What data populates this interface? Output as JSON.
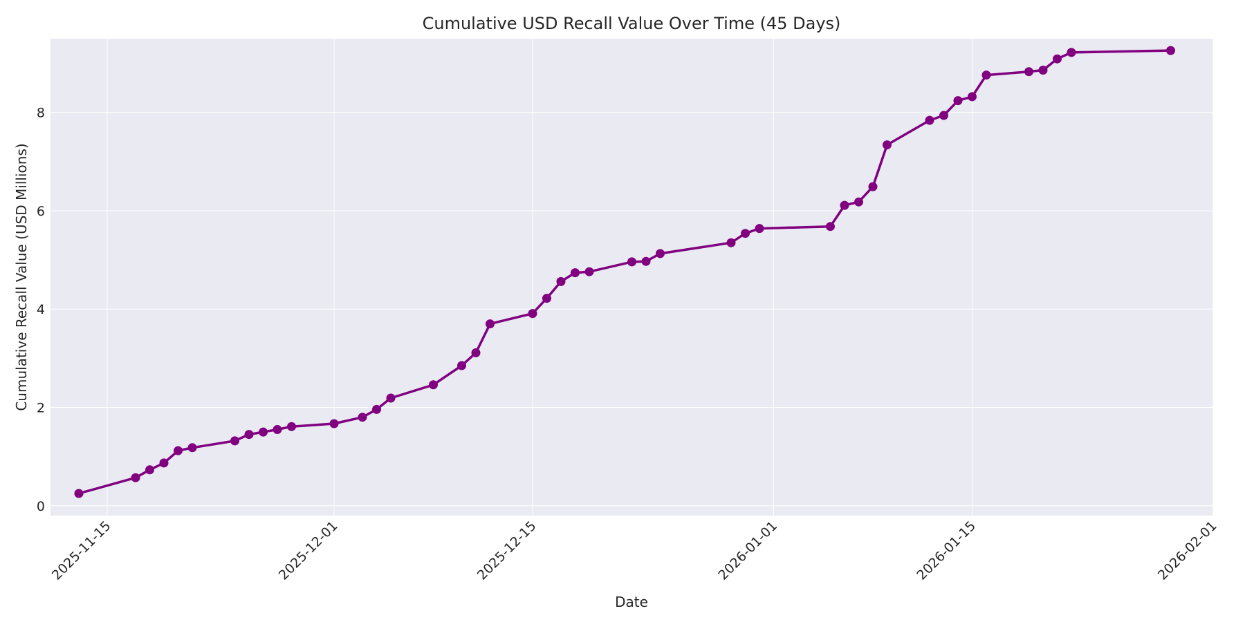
{
  "chart_data": {
    "type": "line",
    "title": "Cumulative USD Recall Value Over Time (45 Days)",
    "xlabel": "Date",
    "ylabel": "Cumulative Recall Value (USD Millions)",
    "xlim": [
      "2025-11-11",
      "2026-02-01"
    ],
    "ylim": [
      -0.2,
      9.5
    ],
    "x_ticks": [
      "2025-11-15",
      "2025-12-01",
      "2025-12-15",
      "2026-01-01",
      "2026-01-15",
      "2026-02-01"
    ],
    "y_ticks": [
      0,
      2,
      4,
      6,
      8
    ],
    "grid": true,
    "colors": {
      "line": "#800080",
      "plot_background": "#eaeaf2",
      "grid": "#ffffff"
    },
    "series": [
      {
        "x": [
          "2025-11-13",
          "2025-11-17",
          "2025-11-18",
          "2025-11-19",
          "2025-11-20",
          "2025-11-21",
          "2025-11-24",
          "2025-11-25",
          "2025-11-26",
          "2025-11-27",
          "2025-11-28",
          "2025-12-01",
          "2025-12-03",
          "2025-12-04",
          "2025-12-05",
          "2025-12-08",
          "2025-12-10",
          "2025-12-11",
          "2025-12-12",
          "2025-12-15",
          "2025-12-16",
          "2025-12-17",
          "2025-12-18",
          "2025-12-19",
          "2025-12-22",
          "2025-12-23",
          "2025-12-24",
          "2025-12-29",
          "2025-12-30",
          "2025-12-31",
          "2026-01-05",
          "2026-01-06",
          "2026-01-07",
          "2026-01-08",
          "2026-01-09",
          "2026-01-12",
          "2026-01-13",
          "2026-01-14",
          "2026-01-15",
          "2026-01-16",
          "2026-01-19",
          "2026-01-20",
          "2026-01-21",
          "2026-01-22",
          "2026-01-29"
        ],
        "y": [
          0.25,
          0.57,
          0.73,
          0.87,
          1.12,
          1.18,
          1.32,
          1.45,
          1.5,
          1.55,
          1.61,
          1.67,
          1.8,
          1.96,
          2.19,
          2.46,
          2.85,
          3.11,
          3.7,
          3.91,
          4.22,
          4.56,
          4.74,
          4.76,
          4.96,
          4.97,
          5.13,
          5.35,
          5.54,
          5.64,
          5.68,
          6.11,
          6.18,
          6.49,
          7.34,
          7.84,
          7.94,
          8.24,
          8.32,
          8.76,
          8.83,
          8.86,
          9.09,
          9.22,
          9.26
        ]
      }
    ]
  }
}
